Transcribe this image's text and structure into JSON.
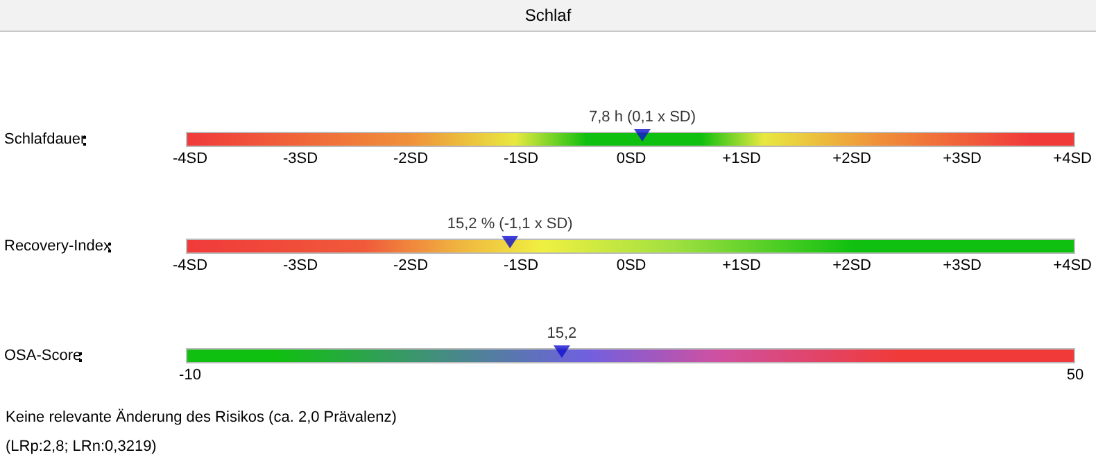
{
  "chart_data": [
    {
      "type": "scatter",
      "title": "Schlaf",
      "orientation": "horizontal",
      "categories": [
        "Schlafdauer"
      ],
      "values": [
        0.1
      ],
      "value_labels": [
        "7,8 h (0,1 x SD)"
      ],
      "color": "#1010d0",
      "marker": "triangle",
      "xlim": [
        -4,
        4
      ],
      "xticks": [
        {
          "value": -4,
          "label": "-4SD"
        },
        {
          "value": -3,
          "label": "-3SD"
        },
        {
          "value": -2,
          "label": "-2SD"
        },
        {
          "value": -1,
          "label": "-1SD"
        },
        {
          "value": 0,
          "label": "0SD"
        },
        {
          "value": 1,
          "label": "+1SD"
        },
        {
          "value": 2,
          "label": "+2SD"
        },
        {
          "value": 3,
          "label": "+3SD"
        },
        {
          "value": 4,
          "label": "+4SD"
        }
      ]
    },
    {
      "type": "scatter",
      "orientation": "horizontal",
      "categories": [
        "Recovery-Index"
      ],
      "values": [
        -1.1
      ],
      "value_labels": [
        "15,2 % (-1,1 x SD)"
      ],
      "color": "#1010d0",
      "marker": "triangle",
      "xlim": [
        -4,
        4
      ],
      "xticks": [
        {
          "value": -4,
          "label": "-4SD"
        },
        {
          "value": -3,
          "label": "-3SD"
        },
        {
          "value": -2,
          "label": "-2SD"
        },
        {
          "value": -1,
          "label": "-1SD"
        },
        {
          "value": 0,
          "label": "0SD"
        },
        {
          "value": 1,
          "label": "+1SD"
        },
        {
          "value": 2,
          "label": "+2SD"
        },
        {
          "value": 3,
          "label": "+3SD"
        },
        {
          "value": 4,
          "label": "+4SD"
        }
      ]
    },
    {
      "type": "scatter",
      "orientation": "horizontal",
      "categories": [
        "OSA-Score"
      ],
      "values": [
        15.2
      ],
      "value_labels": [
        "15,2"
      ],
      "color": "#1010d0",
      "marker": "triangle",
      "xlim": [
        -10,
        50
      ],
      "xticks": [
        -10,
        50
      ],
      "annotations": [
        "Keine relevante Änderung des Risikos (ca. 2,0 Prävalenz)",
        "(LRp:2,8; LRn:0,3219)"
      ]
    }
  ]
}
